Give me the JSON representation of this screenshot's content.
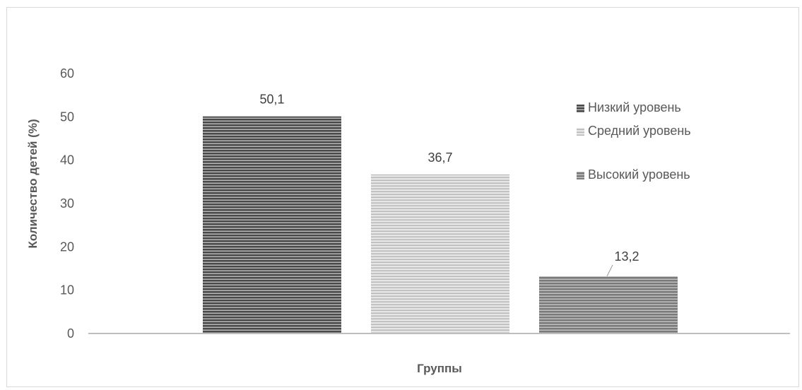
{
  "chart_data": {
    "type": "bar",
    "title": "",
    "xlabel": "Группы",
    "ylabel": "Количество детей (%)",
    "ylim": [
      0,
      60
    ],
    "yticks": [
      0,
      10,
      20,
      30,
      40,
      50,
      60
    ],
    "grid": false,
    "legend_position": "right",
    "series": [
      {
        "name": "Низкий уровень",
        "values": [
          50.1
        ],
        "label": "50,1",
        "color": "#595959"
      },
      {
        "name": "Средний уровень",
        "values": [
          36.7
        ],
        "label": "36,7",
        "color": "#cfcfcf"
      },
      {
        "name": "Высокий уровень",
        "values": [
          13.2
        ],
        "label": "13,2",
        "color": "#8c8c8c"
      }
    ]
  }
}
